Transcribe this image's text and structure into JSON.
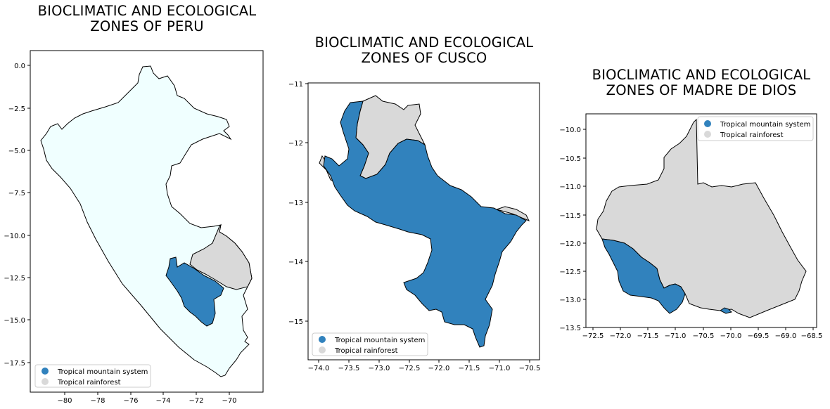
{
  "colors": {
    "tropical_mountain_system": "#3182bd",
    "tropical_rainforest": "#d9d9d9",
    "peru_background": "#f0ffff"
  },
  "panels": [
    {
      "id": "peru",
      "title_line1": "BIOCLIMATIC AND ECOLOGICAL",
      "title_line2": "ZONES OF PERU",
      "xticks": [
        "−80",
        "−78",
        "−76",
        "−74",
        "−72",
        "−70"
      ],
      "yticks": [
        "0.0",
        "−2.5",
        "−5.0",
        "−7.5",
        "−10.0",
        "−12.5",
        "−15.0",
        "−17.5"
      ],
      "legend": [
        "Tropical mountain system",
        "Tropical rainforest"
      ]
    },
    {
      "id": "cusco",
      "title_line1": "BIOCLIMATIC AND ECOLOGICAL",
      "title_line2": "ZONES OF CUSCO",
      "xticks": [
        "−74.0",
        "−73.5",
        "−73.0",
        "−72.5",
        "−72.0",
        "−71.5",
        "−71.0",
        "−70.5"
      ],
      "yticks": [
        "−11",
        "−12",
        "−13",
        "−14",
        "−15"
      ],
      "legend": [
        "Tropical mountain system",
        "Tropical rainforest"
      ]
    },
    {
      "id": "madre_de_dios",
      "title_line1": "BIOCLIMATIC AND ECOLOGICAL",
      "title_line2": "ZONES OF MADRE DE DIOS",
      "xticks": [
        "−72.5",
        "−72.0",
        "−71.5",
        "−71.0",
        "−70.5",
        "−70.0",
        "−69.5",
        "−69.0",
        "−68.5"
      ],
      "yticks": [
        "−10.0",
        "−10.5",
        "−11.0",
        "−11.5",
        "−12.0",
        "−12.5",
        "−13.0",
        "−13.5"
      ],
      "legend": [
        "Tropical mountain system",
        "Tropical rainforest"
      ]
    }
  ]
}
